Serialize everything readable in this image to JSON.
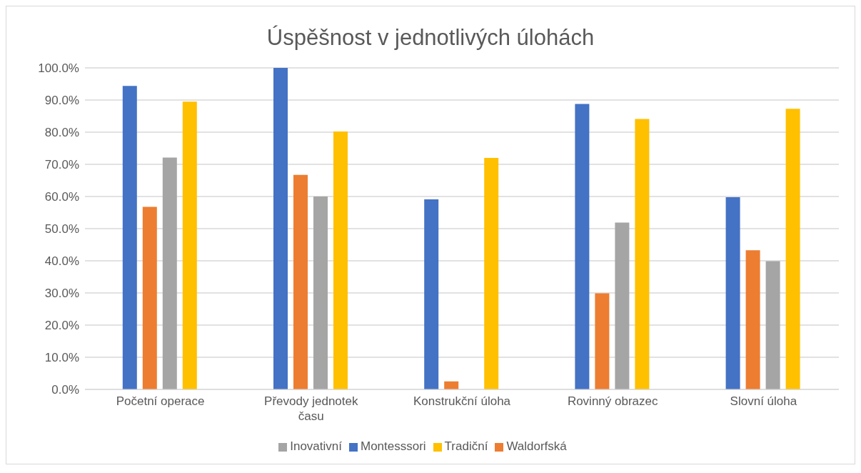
{
  "chart_data": {
    "type": "bar",
    "title": "Úspěšnost v jednotlivých úlohách",
    "categories": [
      "Početní operace",
      "Převody jednotek času",
      "Konstrukční úloha",
      "Rovinný obrazec",
      "Slovní úloha"
    ],
    "series": [
      {
        "name": "Montesssori",
        "color": "#4472c4",
        "values": [
          94.4,
          100,
          59.1,
          88.8,
          59.8
        ]
      },
      {
        "name": "Waldorfská",
        "color": "#ed7d31",
        "values": [
          56.8,
          66.7,
          2.5,
          29.9,
          43.3
        ]
      },
      {
        "name": "Inovativní",
        "color": "#a5a5a5",
        "values": [
          72.1,
          60.0,
          0,
          51.9,
          39.9
        ]
      },
      {
        "name": "Tradiční",
        "color": "#ffc000",
        "values": [
          89.5,
          80.2,
          72.0,
          84.1,
          87.3
        ]
      }
    ],
    "ylim": [
      0,
      100
    ],
    "yticks": [
      {
        "value": 0,
        "label": "0.0%"
      },
      {
        "value": 10,
        "label": "10.0%"
      },
      {
        "value": 20,
        "label": "20.0%"
      },
      {
        "value": 30,
        "label": "30.0%"
      },
      {
        "value": 40,
        "label": "40.0%"
      },
      {
        "value": 50,
        "label": "50.0%"
      },
      {
        "value": 60,
        "label": "60.0%"
      },
      {
        "value": 70,
        "label": "70.0%"
      },
      {
        "value": 80,
        "label": "80.0%"
      },
      {
        "value": 90,
        "label": "90.0%"
      },
      {
        "value": 100,
        "label": "100.0%"
      }
    ],
    "grid": "y",
    "legend": "bottom"
  }
}
